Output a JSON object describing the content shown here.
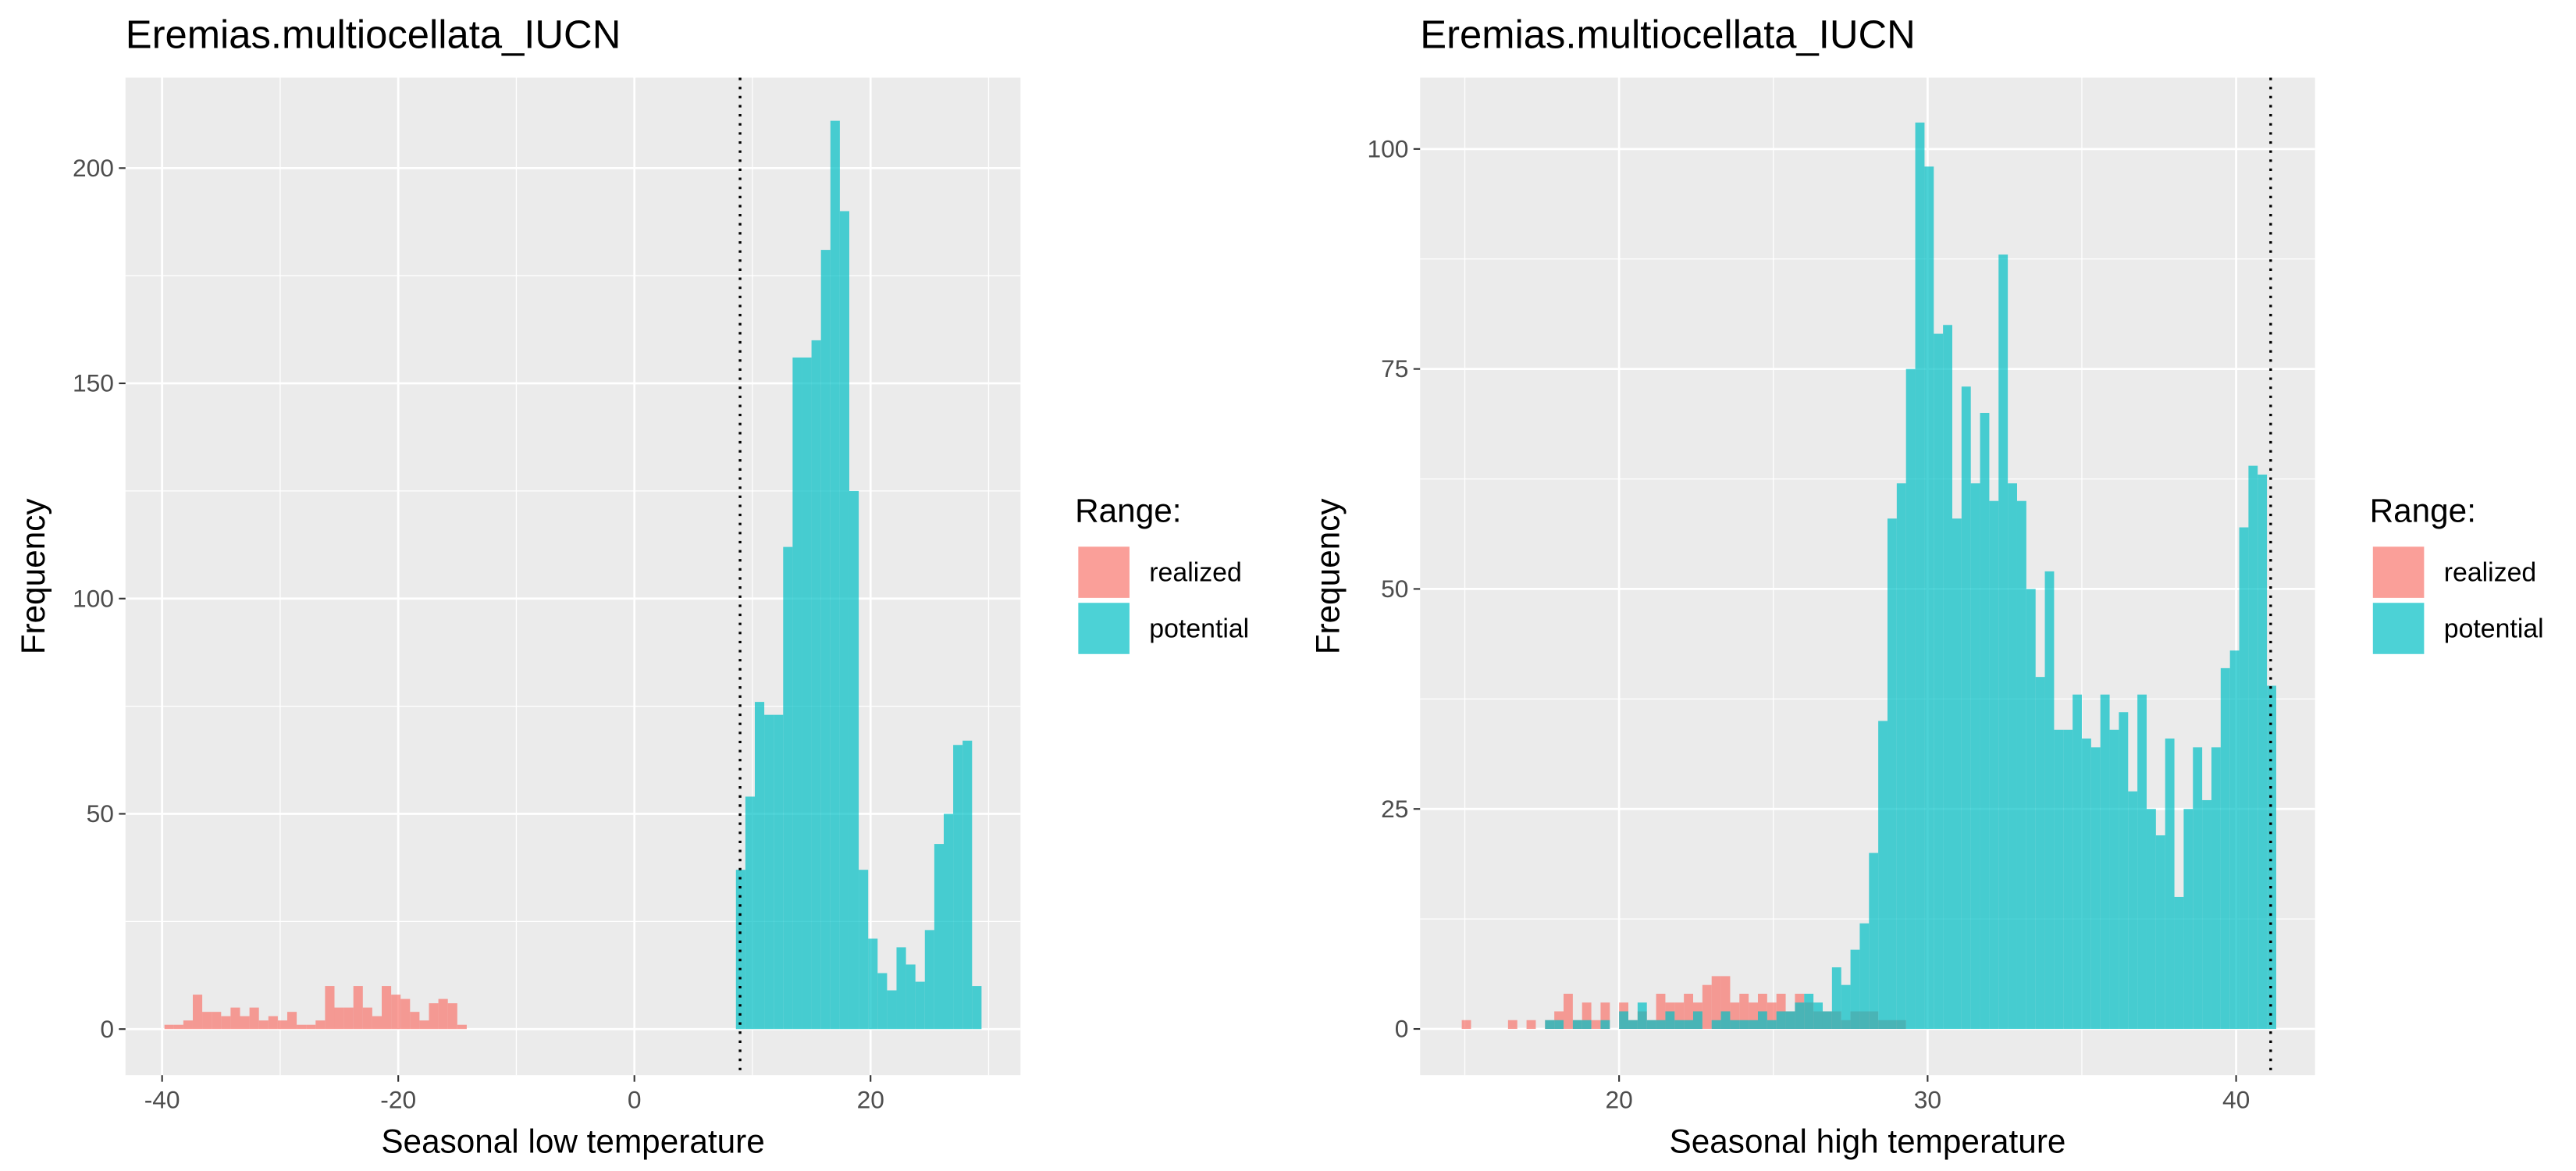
{
  "chart_data": [
    {
      "type": "histogram",
      "title": "Eremias.multiocellata_IUCN",
      "xlabel": "Seasonal low temperature",
      "ylabel": "Frequency",
      "legend_title": "Range:",
      "xlim": [
        -43.1,
        32.7
      ],
      "ylim": [
        -10.7,
        221
      ],
      "xticks": [
        -40,
        -20,
        0,
        20
      ],
      "yticks": [
        0,
        50,
        100,
        150,
        200
      ],
      "grid": true,
      "opacity": 0.7,
      "vline": 8.95,
      "series": [
        {
          "name": "realized",
          "color": "#F8766D",
          "bins": [
            -39.8,
            -39,
            -38.2,
            -37.4,
            -36.6,
            -35.8,
            -35,
            -34.2,
            -33.4,
            -32.6,
            -31.8,
            -31,
            -30.2,
            -29.4,
            -28.6,
            -27.8,
            -27,
            -26.2,
            -25.4,
            -24.6,
            -23.8,
            -23,
            -22.2,
            -21.4,
            -20.6,
            -19.8,
            -19,
            -18.2,
            -17.4,
            -16.6,
            -15.8,
            -15,
            -14.2
          ],
          "values": [
            1,
            1,
            2,
            8,
            4,
            4,
            3,
            5,
            3,
            5,
            2,
            3,
            2,
            4,
            1,
            1,
            2,
            10,
            5,
            5,
            10,
            5,
            3,
            10,
            8,
            7,
            4,
            2,
            6,
            7,
            6,
            1
          ]
        },
        {
          "name": "potential",
          "color": "#00BFC4",
          "bins": [
            8.6,
            9.4,
            10.2,
            11,
            11.8,
            12.6,
            13.4,
            14.2,
            15,
            15.8,
            16.6,
            17.4,
            18.2,
            19,
            19.8,
            20.6,
            21.4,
            22.2,
            23,
            23.8,
            24.6,
            25.4,
            26.2,
            27,
            27.8,
            28.6,
            29.4
          ],
          "values": [
            37,
            54,
            76,
            73,
            73,
            112,
            156,
            156,
            160,
            181,
            211,
            190,
            125,
            37,
            21,
            13,
            9,
            19,
            15,
            11,
            23,
            43,
            50,
            66,
            67,
            10
          ]
        }
      ]
    },
    {
      "type": "histogram",
      "title": "Eremias.multiocellata_IUCN",
      "xlabel": "Seasonal high temperature",
      "ylabel": "Frequency",
      "legend_title": "Range:",
      "xlim": [
        13.55,
        42.56
      ],
      "ylim": [
        -5.25,
        108.1
      ],
      "xticks": [
        20,
        30,
        40
      ],
      "yticks": [
        0,
        25,
        50,
        75,
        100
      ],
      "grid": true,
      "opacity": 0.7,
      "vline": 41.12,
      "series": [
        {
          "name": "realized",
          "color": "#F8766D",
          "bins": [
            14.9,
            15.2,
            15.5,
            15.8,
            16.1,
            16.4,
            16.7,
            17,
            17.3,
            17.6,
            17.9,
            18.2,
            18.5,
            18.8,
            19.1,
            19.4,
            19.7,
            20,
            20.3,
            20.6,
            20.9,
            21.2,
            21.5,
            21.8,
            22.1,
            22.4,
            22.7,
            23,
            23.3,
            23.6,
            23.9,
            24.2,
            24.5,
            24.8,
            25.1,
            25.4,
            25.7,
            26,
            26.3,
            26.6,
            26.9,
            27.2,
            27.5,
            27.8,
            28.1,
            28.4,
            28.7,
            29,
            29.3
          ],
          "values": [
            1,
            0,
            0,
            0,
            0,
            1,
            0,
            1,
            0,
            1,
            2,
            4,
            1,
            3,
            1,
            3,
            0,
            3,
            1,
            2,
            1,
            4,
            3,
            3,
            4,
            3,
            5,
            6,
            6,
            3,
            4,
            3,
            4,
            3,
            4,
            2,
            4,
            3,
            2,
            2,
            2,
            1,
            2,
            2,
            2,
            1,
            1,
            1
          ]
        },
        {
          "name": "potential",
          "color": "#00BFC4",
          "bins": [
            17.6,
            17.9,
            18.2,
            18.5,
            18.8,
            19.1,
            19.4,
            19.7,
            20,
            20.3,
            20.6,
            20.9,
            21.2,
            21.5,
            21.8,
            22.1,
            22.4,
            22.7,
            23,
            23.3,
            23.6,
            23.9,
            24.2,
            24.5,
            24.8,
            25.1,
            25.4,
            25.7,
            26,
            26.3,
            26.6,
            26.9,
            27.2,
            27.5,
            27.8,
            28.1,
            28.4,
            28.7,
            29,
            29.3,
            29.6,
            29.9,
            30.2,
            30.5,
            30.8,
            31.1,
            31.4,
            31.7,
            32,
            32.3,
            32.6,
            32.9,
            33.2,
            33.5,
            33.8,
            34.1,
            34.4,
            34.7,
            35,
            35.3,
            35.6,
            35.9,
            36.2,
            36.5,
            36.8,
            37.1,
            37.4,
            37.7,
            38,
            38.3,
            38.6,
            38.9,
            39.2,
            39.5,
            39.8,
            40.1,
            40.4,
            40.7,
            41,
            41.3
          ],
          "values": [
            1,
            1,
            0,
            1,
            1,
            0,
            1,
            0,
            2,
            1,
            3,
            1,
            1,
            2,
            1,
            1,
            2,
            0,
            1,
            2,
            1,
            1,
            1,
            2,
            1,
            2,
            2,
            3,
            4,
            3,
            2,
            7,
            5,
            9,
            12,
            20,
            35,
            58,
            62,
            75,
            103,
            98,
            79,
            80,
            58,
            73,
            62,
            70,
            60,
            88,
            62,
            60,
            50,
            40,
            52,
            34,
            34,
            38,
            33,
            32,
            38,
            34,
            36,
            27,
            38,
            25,
            22,
            33,
            15,
            25,
            32,
            26,
            32,
            41,
            43,
            57,
            64,
            63,
            39
          ]
        }
      ]
    }
  ]
}
